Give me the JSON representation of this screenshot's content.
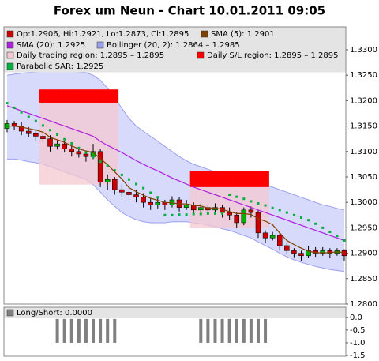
{
  "chart_data": {
    "type": "candlestick",
    "title": "Forex um Neun - Chart 10.01.2011 09:05",
    "ylim": [
      1.28,
      1.3345
    ],
    "yticks": [
      {
        "value": 1.28,
        "label": "1.2800"
      },
      {
        "value": 1.285,
        "label": "1.2850"
      },
      {
        "value": 1.29,
        "label": "1.2900"
      },
      {
        "value": 1.295,
        "label": "1.2950"
      },
      {
        "value": 1.3,
        "label": "1.3000"
      },
      {
        "value": 1.305,
        "label": "1.3050"
      },
      {
        "value": 1.31,
        "label": "1.3100"
      },
      {
        "value": 1.315,
        "label": "1.3150"
      },
      {
        "value": 1.32,
        "label": "1.3200"
      },
      {
        "value": 1.325,
        "label": "1.3250"
      },
      {
        "value": 1.33,
        "label": "1.3300"
      }
    ],
    "ohlc": {
      "name": "Op:1.2906, Hi:1.2921, Lo:1.2873, Cl:1.2895",
      "color": "#cc0000",
      "up_color": "#00b000",
      "open": [
        1.3145,
        1.3155,
        1.315,
        1.314,
        1.3135,
        1.313,
        1.3125,
        1.311,
        1.3115,
        1.3105,
        1.31,
        1.3095,
        1.309,
        1.31,
        1.304,
        1.3045,
        1.3025,
        1.302,
        1.3015,
        1.301,
        1.3,
        1.2995,
        1.3,
        1.2995,
        1.3005,
        1.299,
        1.2995,
        1.2985,
        1.299,
        1.2985,
        1.299,
        1.298,
        1.2975,
        1.296,
        1.2985,
        1.298,
        1.294,
        1.293,
        1.2935,
        1.2915,
        1.2905,
        1.29,
        1.2895,
        1.2905,
        1.29,
        1.2905,
        1.29,
        1.2905
      ],
      "high": [
        1.3162,
        1.316,
        1.3158,
        1.3148,
        1.3145,
        1.314,
        1.3132,
        1.3122,
        1.312,
        1.3112,
        1.3108,
        1.3102,
        1.3115,
        1.3105,
        1.3055,
        1.305,
        1.3035,
        1.303,
        1.3025,
        1.3018,
        1.3008,
        1.301,
        1.3005,
        1.3012,
        1.301,
        1.3005,
        1.3,
        1.2998,
        1.2995,
        1.2998,
        1.2995,
        1.299,
        1.298,
        1.299,
        1.2992,
        1.2985,
        1.2945,
        1.2942,
        1.294,
        1.292,
        1.291,
        1.2905,
        1.2915,
        1.2912,
        1.2912,
        1.291,
        1.291,
        1.2908
      ],
      "low": [
        1.3138,
        1.3142,
        1.3132,
        1.3128,
        1.312,
        1.3118,
        1.31,
        1.3104,
        1.3098,
        1.309,
        1.3088,
        1.308,
        1.3085,
        1.303,
        1.3025,
        1.3015,
        1.301,
        1.3005,
        1.3,
        1.299,
        1.2985,
        1.2988,
        1.2985,
        1.299,
        1.2982,
        1.2985,
        1.2978,
        1.298,
        1.2978,
        1.298,
        1.297,
        1.2965,
        1.295,
        1.2955,
        1.297,
        1.293,
        1.292,
        1.2925,
        1.2905,
        1.2898,
        1.2892,
        1.2885,
        1.289,
        1.2893,
        1.2895,
        1.289,
        1.2895,
        1.2885
      ],
      "close": [
        1.3155,
        1.315,
        1.314,
        1.3135,
        1.313,
        1.3125,
        1.311,
        1.3115,
        1.3105,
        1.31,
        1.3095,
        1.309,
        1.31,
        1.304,
        1.3045,
        1.3025,
        1.302,
        1.3015,
        1.301,
        1.3,
        1.2995,
        1.3,
        1.2995,
        1.3005,
        1.299,
        1.2995,
        1.2985,
        1.299,
        1.2985,
        1.299,
        1.298,
        1.2975,
        1.296,
        1.2985,
        1.298,
        1.294,
        1.293,
        1.2935,
        1.2915,
        1.2905,
        1.29,
        1.2895,
        1.2905,
        1.29,
        1.2905,
        1.29,
        1.2905,
        1.2895
      ]
    },
    "series": [
      {
        "name": "SMA (5): 1.2901",
        "color": "#804000",
        "kind": "line",
        "values": [
          1.315,
          1.315,
          1.3148,
          1.3145,
          1.3142,
          1.3138,
          1.3128,
          1.3123,
          1.3118,
          1.3111,
          1.3105,
          1.3101,
          1.3098,
          1.3086,
          1.3074,
          1.306,
          1.3046,
          1.3029,
          1.3021,
          1.3014,
          1.3008,
          1.3004,
          1.3,
          1.2999,
          1.2997,
          1.2997,
          1.2994,
          1.2993,
          1.2989,
          1.2989,
          1.2986,
          1.2982,
          1.2978,
          1.2978,
          1.2976,
          1.2968,
          1.2963,
          1.2956,
          1.294,
          1.2925,
          1.2917,
          1.291,
          1.2904,
          1.2901,
          1.2901,
          1.2901,
          1.2903,
          1.2901
        ]
      },
      {
        "name": "SMA (20): 1.2925",
        "color": "#b020e0",
        "kind": "line",
        "values": [
          1.319,
          1.3185,
          1.318,
          1.3175,
          1.317,
          1.3165,
          1.316,
          1.3155,
          1.315,
          1.3145,
          1.314,
          1.3135,
          1.313,
          1.312,
          1.3112,
          1.3105,
          1.3098,
          1.309,
          1.3082,
          1.3075,
          1.3068,
          1.3062,
          1.3055,
          1.3048,
          1.3042,
          1.3036,
          1.303,
          1.3025,
          1.302,
          1.3015,
          1.301,
          1.3005,
          1.3,
          1.2995,
          1.299,
          1.2985,
          1.298,
          1.2975,
          1.297,
          1.2965,
          1.296,
          1.2955,
          1.295,
          1.2945,
          1.294,
          1.2935,
          1.293,
          1.2925
        ]
      },
      {
        "name": "Bollinger (20, 2): 1.2864 – 1.2985",
        "color": "#9aa0f0",
        "kind": "band",
        "high": [
          1.325,
          1.3252,
          1.3254,
          1.3255,
          1.3256,
          1.3257,
          1.3258,
          1.3258,
          1.3258,
          1.3257,
          1.3256,
          1.3255,
          1.325,
          1.324,
          1.3225,
          1.3205,
          1.3185,
          1.3165,
          1.315,
          1.314,
          1.313,
          1.312,
          1.311,
          1.31,
          1.309,
          1.3082,
          1.3075,
          1.307,
          1.3065,
          1.306,
          1.3055,
          1.305,
          1.3045,
          1.304,
          1.3035,
          1.3035,
          1.3035,
          1.303,
          1.3025,
          1.302,
          1.3015,
          1.301,
          1.3005,
          1.3,
          1.2995,
          1.2992,
          1.2988,
          1.2985
        ],
        "low": [
          1.3085,
          1.3085,
          1.3083,
          1.308,
          1.3078,
          1.3075,
          1.307,
          1.3065,
          1.306,
          1.3055,
          1.305,
          1.3045,
          1.3035,
          1.302,
          1.3005,
          1.2992,
          1.298,
          1.2972,
          1.2966,
          1.2962,
          1.296,
          1.296,
          1.296,
          1.2962,
          1.2962,
          1.2962,
          1.296,
          1.2958,
          1.2955,
          1.2952,
          1.2948,
          1.2945,
          1.294,
          1.2935,
          1.293,
          1.2922,
          1.2915,
          1.2908,
          1.29,
          1.2893,
          1.2887,
          1.2882,
          1.2878,
          1.2874,
          1.2871,
          1.2868,
          1.2866,
          1.2864
        ]
      },
      {
        "name": "Daily trading region: 1.2895 – 1.2895",
        "color": "#f4c8d0",
        "kind": "region",
        "high": [
          null,
          null,
          null,
          null,
          null,
          1.3196,
          1.3196,
          1.3196,
          1.3196,
          1.3196,
          1.3196,
          1.3196,
          1.3196,
          1.3196,
          1.3196,
          1.3196,
          null,
          null,
          null,
          null,
          null,
          null,
          null,
          null,
          null,
          null,
          1.303,
          1.303,
          1.303,
          1.303,
          1.303,
          1.303,
          1.303,
          1.303,
          1.303,
          1.303,
          1.303,
          null,
          null,
          null,
          null,
          null,
          null,
          null,
          null,
          null,
          null,
          null
        ],
        "low": [
          null,
          null,
          null,
          null,
          null,
          1.3035,
          1.3035,
          1.3035,
          1.3035,
          1.3035,
          1.3035,
          1.3035,
          1.3035,
          1.3035,
          1.3035,
          1.3035,
          null,
          null,
          null,
          null,
          null,
          null,
          null,
          null,
          null,
          null,
          1.295,
          1.295,
          1.295,
          1.295,
          1.295,
          1.295,
          1.295,
          1.295,
          1.295,
          1.295,
          1.295,
          null,
          null,
          null,
          null,
          null,
          null,
          null,
          null,
          null,
          null,
          null
        ]
      },
      {
        "name": "Daily S/L region: 1.2895 – 1.2895",
        "color": "#ff0000",
        "kind": "region",
        "high": [
          null,
          null,
          null,
          null,
          null,
          1.3222,
          1.3222,
          1.3222,
          1.3222,
          1.3222,
          1.3222,
          1.3222,
          1.3222,
          1.3222,
          1.3222,
          1.3222,
          null,
          null,
          null,
          null,
          null,
          null,
          null,
          null,
          null,
          null,
          1.3062,
          1.3062,
          1.3062,
          1.3062,
          1.3062,
          1.3062,
          1.3062,
          1.3062,
          1.3062,
          1.3062,
          1.3062,
          null,
          null,
          null,
          null,
          null,
          null,
          null,
          null,
          null,
          null,
          null
        ],
        "low": [
          null,
          null,
          null,
          null,
          null,
          1.3196,
          1.3196,
          1.3196,
          1.3196,
          1.3196,
          1.3196,
          1.3196,
          1.3196,
          1.3196,
          1.3196,
          1.3196,
          null,
          null,
          null,
          null,
          null,
          null,
          null,
          null,
          null,
          null,
          1.303,
          1.303,
          1.303,
          1.303,
          1.303,
          1.303,
          1.303,
          1.303,
          1.303,
          1.303,
          1.303,
          null,
          null,
          null,
          null,
          null,
          null,
          null,
          null,
          null,
          null,
          null
        ]
      },
      {
        "name": "Parabolic SAR: 1.2925",
        "color": "#00b040",
        "kind": "dots",
        "values": [
          1.3195,
          1.3186,
          1.3177,
          1.3168,
          1.316,
          1.3151,
          1.3142,
          1.3133,
          1.3124,
          1.3116,
          1.3107,
          1.3098,
          1.3089,
          1.308,
          1.3072,
          1.3063,
          1.3054,
          1.3045,
          1.3036,
          1.3028,
          1.3019,
          1.301,
          1.2975,
          1.2975,
          1.2976,
          1.2976,
          1.2977,
          1.2977,
          1.2978,
          1.2978,
          1.2978,
          1.3015,
          1.3011,
          1.3007,
          1.3002,
          1.2998,
          1.2994,
          1.2989,
          1.2985,
          1.298,
          1.2975,
          1.297,
          1.2965,
          1.2958,
          1.295,
          1.2942,
          1.2934,
          1.2925
        ]
      }
    ],
    "indicator": {
      "name": "Long/Short: 0.0000",
      "color": "#808080",
      "ylim": [
        -1.5,
        0.4
      ],
      "yticks": [
        {
          "value": 0,
          "label": "0.0"
        },
        -0.5,
        {
          "value": -1,
          "label": "-1.0"
        },
        -1.5
      ],
      "values": [
        0,
        0,
        0,
        0,
        0,
        0,
        0,
        -1,
        -1,
        -1,
        -1,
        -1,
        -1,
        -1,
        -1,
        -1,
        0,
        0,
        0,
        0,
        0,
        0,
        0,
        0,
        0,
        0,
        0,
        -1,
        -1,
        -1,
        -1,
        -1,
        -1,
        -1,
        -1,
        -1,
        -1,
        0,
        0,
        0,
        0,
        0,
        0,
        0,
        0,
        0,
        0,
        0
      ]
    }
  }
}
